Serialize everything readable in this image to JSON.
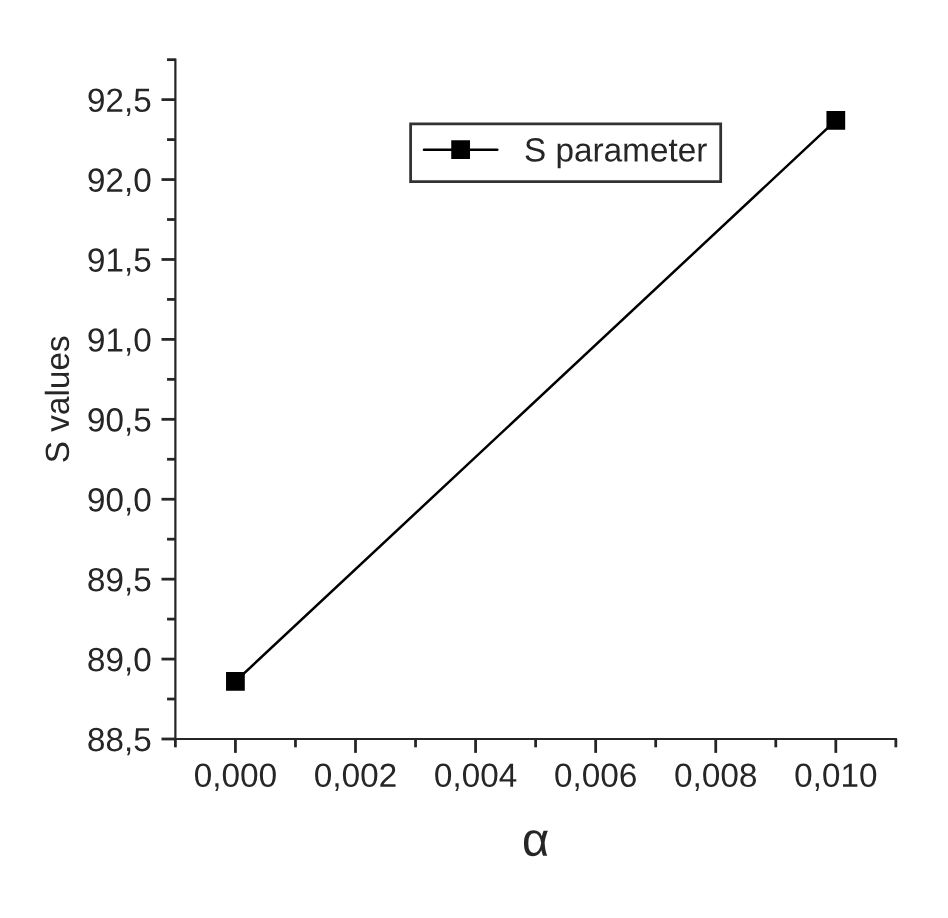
{
  "chart_data": {
    "type": "line",
    "xlabel": "α",
    "ylabel": "S values",
    "x": [
      0.0,
      0.01
    ],
    "series": [
      {
        "name": "S parameter",
        "color": "#000000",
        "values": [
          88.86,
          92.37
        ]
      }
    ],
    "marker": "square",
    "line_style": "solid",
    "legend": "top right",
    "grid": false,
    "xlim": [
      -0.001,
      0.011
    ],
    "ylim": [
      88.5,
      92.75
    ],
    "xticks": [
      {
        "value": 0.0,
        "label": "0,000"
      },
      {
        "value": 0.002,
        "label": "0,002"
      },
      {
        "value": 0.004,
        "label": "0,004"
      },
      {
        "value": 0.006,
        "label": "0,006"
      },
      {
        "value": 0.008,
        "label": "0,008"
      },
      {
        "value": 0.01,
        "label": "0,010"
      }
    ],
    "yticks": [
      {
        "value": 88.5,
        "label": "88,5"
      },
      {
        "value": 89.0,
        "label": "89,0"
      },
      {
        "value": 89.5,
        "label": "89,5"
      },
      {
        "value": 90.0,
        "label": "90,0"
      },
      {
        "value": 90.5,
        "label": "90,5"
      },
      {
        "value": 91.0,
        "label": "91,0"
      },
      {
        "value": 91.5,
        "label": "91,5"
      },
      {
        "value": 92.0,
        "label": "92,0"
      },
      {
        "value": 92.5,
        "label": "92,5"
      }
    ]
  }
}
